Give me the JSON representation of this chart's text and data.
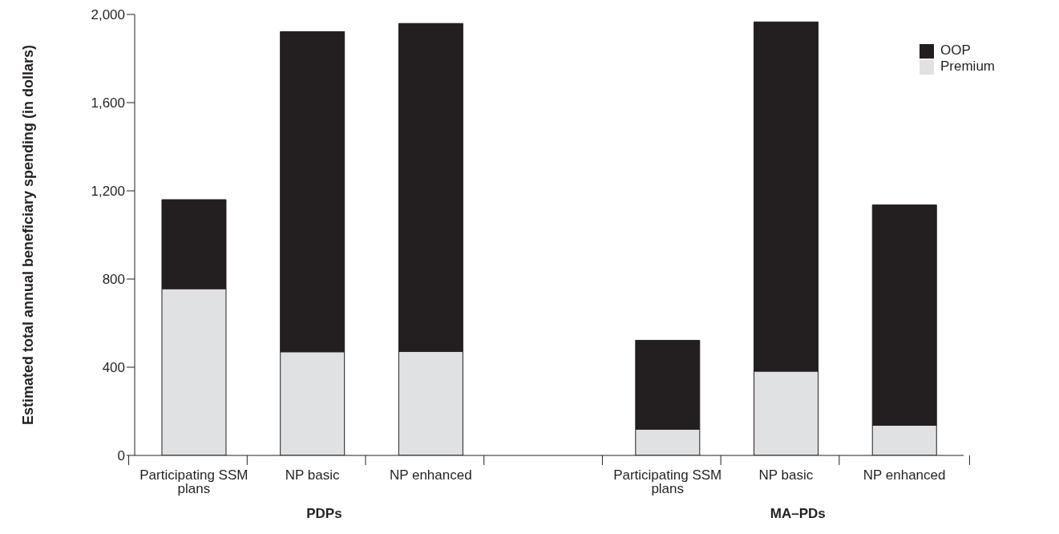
{
  "chart_data": {
    "type": "bar",
    "stacked": true,
    "categories": [
      "Participating SSM plans",
      "NP basic",
      "NP enhanced",
      null,
      "Participating SSM plans",
      "NP basic",
      "NP enhanced"
    ],
    "series": [
      {
        "name": "Premium",
        "color": "#e0e1e3",
        "values": [
          756,
          470,
          472,
          null,
          119,
          382,
          137
        ]
      },
      {
        "name": "OOP",
        "color": "#231f20",
        "values": [
          404,
          1452,
          1487,
          null,
          403,
          1584,
          999
        ]
      }
    ],
    "ylabel": "Estimated total annual beneficiary spending (in dollars)",
    "ylim": [
      0,
      2000
    ],
    "yticks": [
      0,
      400,
      800,
      {
        "value": 1200,
        "label": "1,200"
      },
      {
        "value": 1600,
        "label": "1,600"
      },
      {
        "value": 2000,
        "label": "2,000"
      }
    ],
    "annotations": [
      "PDPs",
      "MA–PDs"
    ],
    "legend": "top right",
    "grid": false
  }
}
